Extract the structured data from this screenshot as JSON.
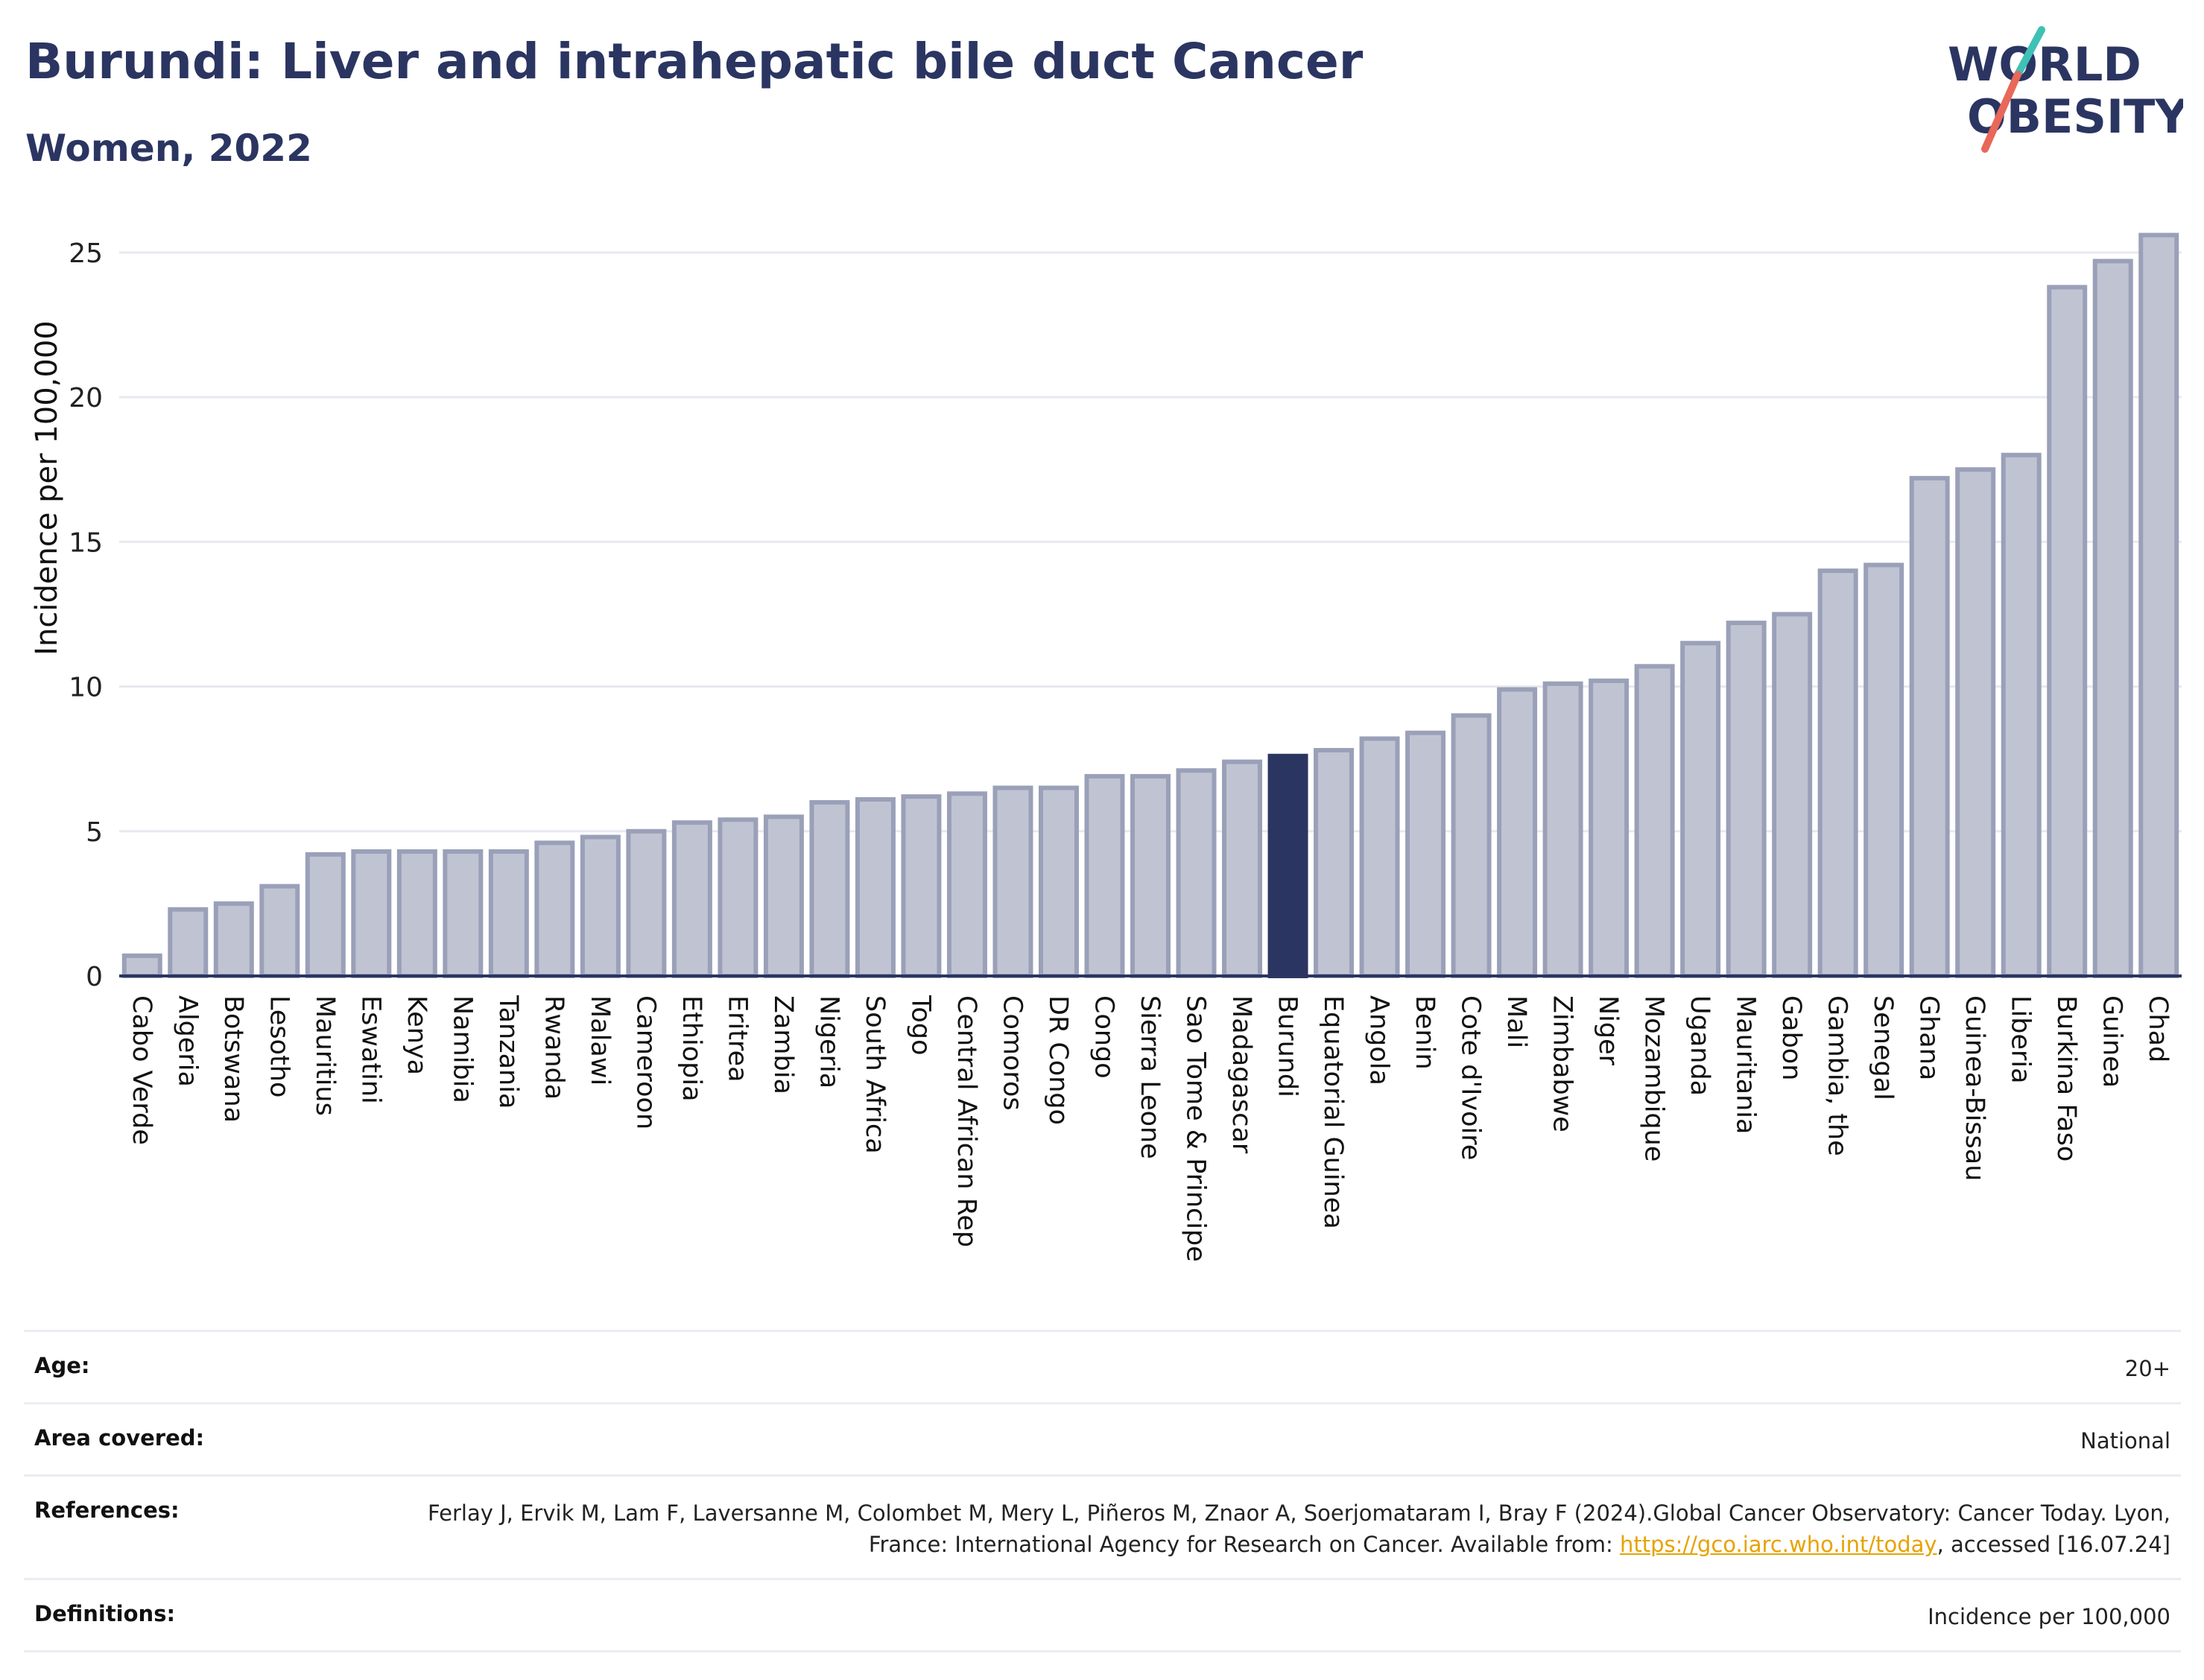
{
  "header": {
    "title": "Burundi: Liver and intrahepatic bile duct Cancer",
    "subtitle": "Women, 2022"
  },
  "logo": {
    "line1": "WORLD",
    "line2": "OBESITY"
  },
  "chart_data": {
    "type": "bar",
    "ylabel": "Incidence per 100,000",
    "xlabel": "",
    "ylim": [
      0,
      26
    ],
    "yticks": [
      0,
      5,
      10,
      15,
      20,
      25
    ],
    "highlight": "Burundi",
    "colors": {
      "bar": "#c0c4d2",
      "bar_edge": "#9aa0b8",
      "highlight": "#2b3561",
      "grid": "#e8e9ef",
      "axis": "#2b3561"
    },
    "categories": [
      "Cabo Verde",
      "Algeria",
      "Botswana",
      "Lesotho",
      "Mauritius",
      "Eswatini",
      "Kenya",
      "Namibia",
      "Tanzania",
      "Rwanda",
      "Malawi",
      "Cameroon",
      "Ethiopia",
      "Eritrea",
      "Zambia",
      "Nigeria",
      "South Africa",
      "Togo",
      "Central African Rep",
      "Comoros",
      "DR Congo",
      "Congo",
      "Sierra Leone",
      "Sao Tome & Principe",
      "Madagascar",
      "Burundi",
      "Equatorial Guinea",
      "Angola",
      "Benin",
      "Cote d'Ivoire",
      "Mali",
      "Zimbabwe",
      "Niger",
      "Mozambique",
      "Uganda",
      "Mauritania",
      "Gabon",
      "Gambia, the",
      "Senegal",
      "Ghana",
      "Guinea-Bissau",
      "Liberia",
      "Burkina Faso",
      "Guinea",
      "Chad"
    ],
    "values": [
      0.7,
      2.3,
      2.5,
      3.1,
      4.2,
      4.3,
      4.3,
      4.3,
      4.3,
      4.6,
      4.8,
      5.0,
      5.3,
      5.4,
      5.5,
      6.0,
      6.1,
      6.2,
      6.3,
      6.5,
      6.5,
      6.9,
      6.9,
      7.1,
      7.4,
      7.6,
      7.8,
      8.2,
      8.4,
      9.0,
      9.9,
      10.1,
      10.2,
      10.7,
      11.5,
      12.2,
      12.5,
      14.0,
      14.2,
      17.2,
      17.5,
      18.0,
      23.8,
      24.7,
      25.6
    ]
  },
  "meta": {
    "age_label": "Age:",
    "age_value": "20+",
    "area_label": "Area covered:",
    "area_value": "National",
    "references_label": "References:",
    "references_text_1": "Ferlay J, Ervik M, Lam F, Laversanne M, Colombet M, Mery L, Piñeros M, Znaor A, Soerjomataram I, Bray F (2024).Global Cancer Observatory: Cancer Today. Lyon, France: International Agency for Research on Cancer. Available from: ",
    "references_link": "https://gco.iarc.who.int/today",
    "references_text_2": ", accessed [16.07.24]",
    "definitions_label": "Definitions:",
    "definitions_value": "Incidence per 100,000"
  }
}
